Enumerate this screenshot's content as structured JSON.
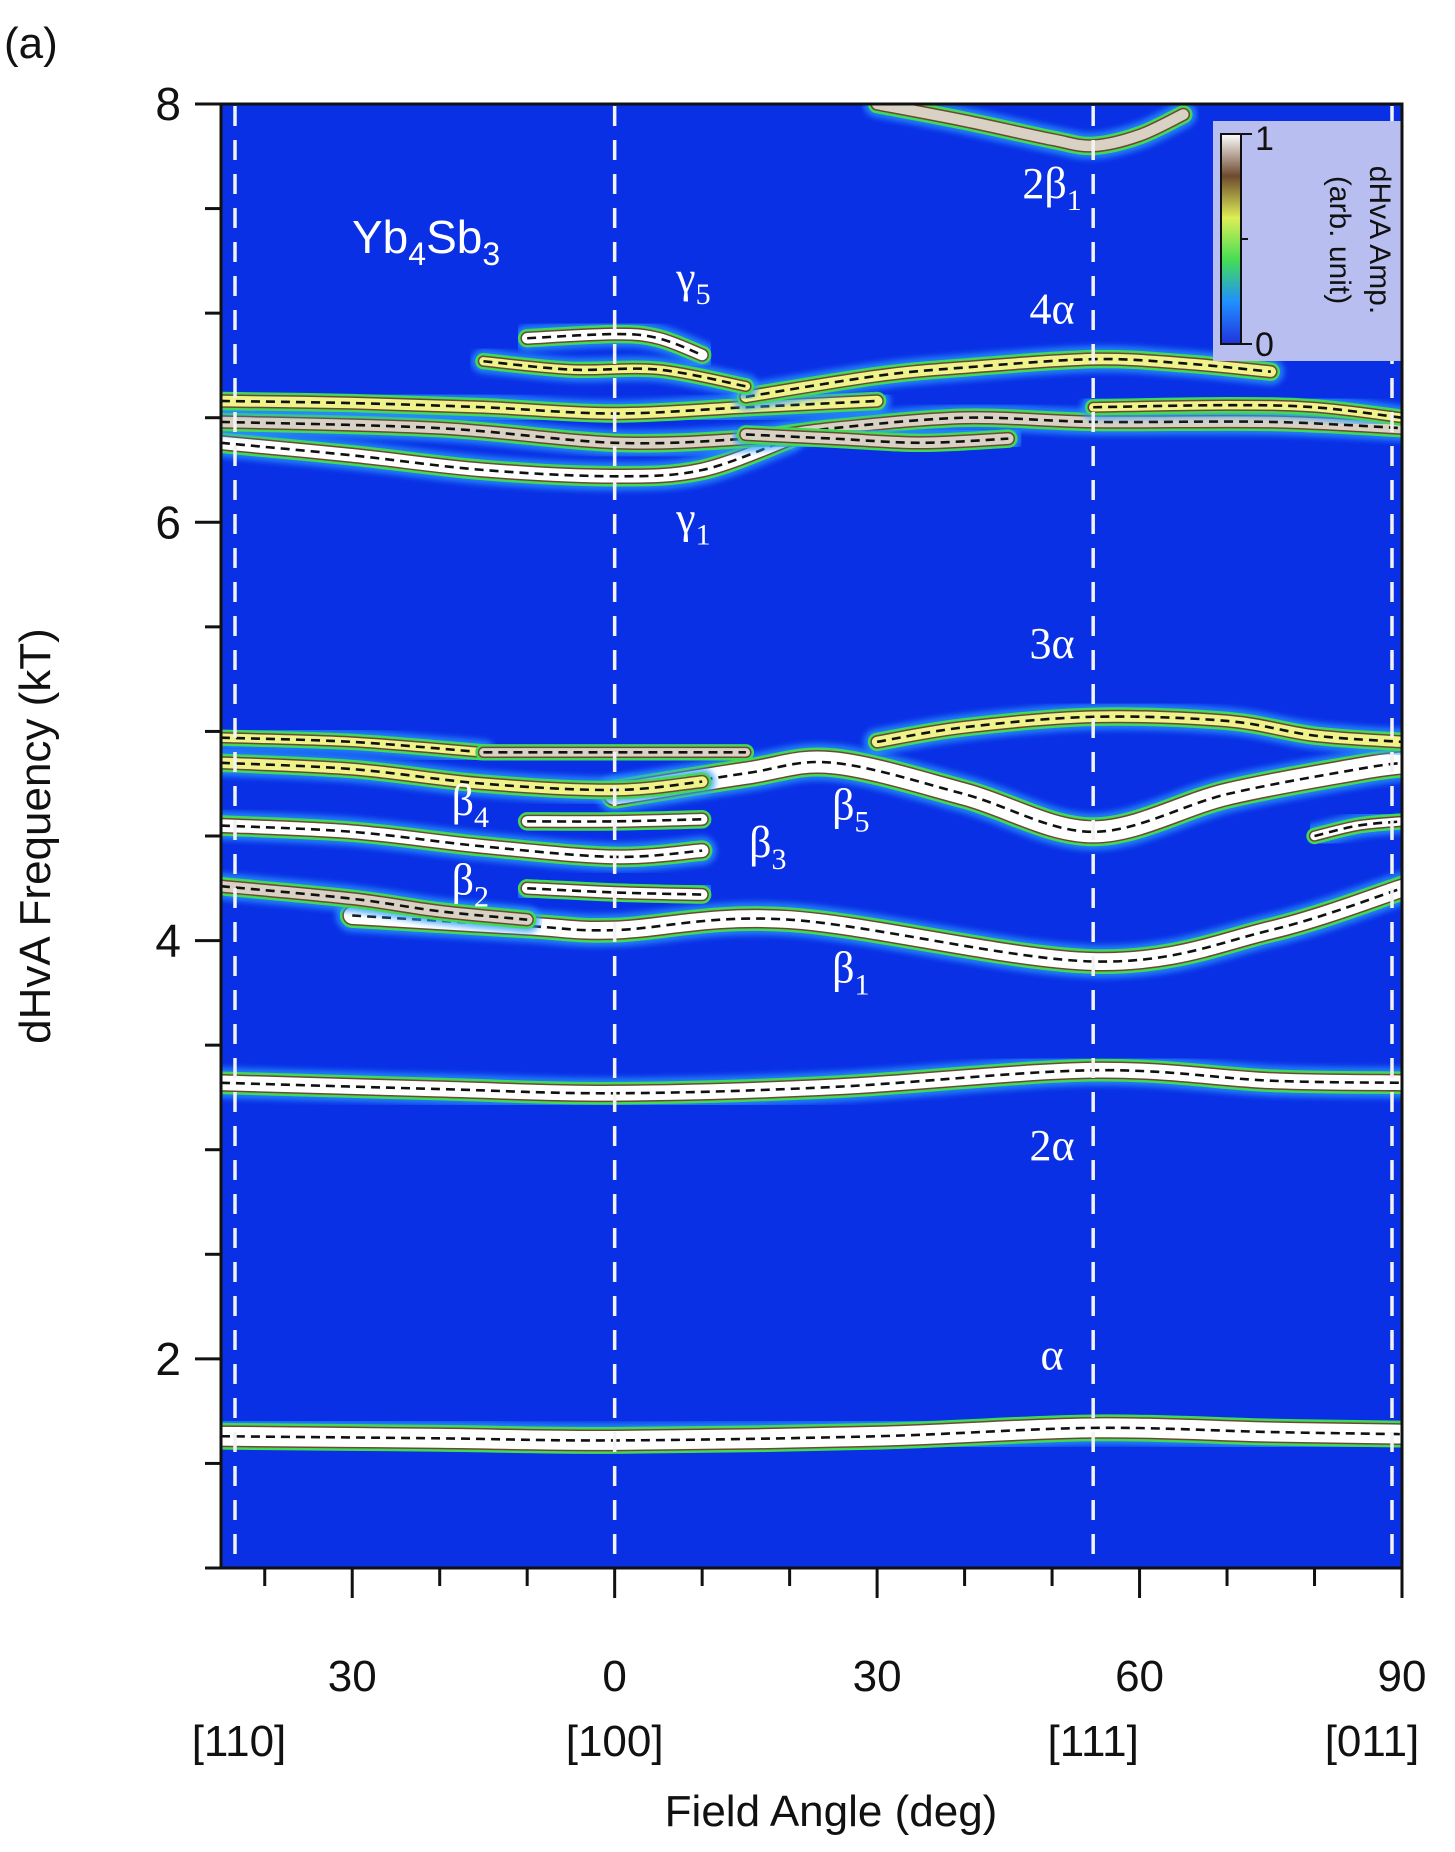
{
  "chart_data": {
    "type": "heatmap",
    "panel_label": "(a)",
    "title": "Yb4Sb3",
    "title_base": "Yb",
    "title_sub1": "4",
    "title_mid": "Sb",
    "title_sub2": "3",
    "xlabel": "Field Angle (deg)",
    "ylabel": "dHvA Frequency (kT)",
    "xlim": [
      -45,
      90
    ],
    "ylim": [
      1.0,
      8.0
    ],
    "x_tick_labels": [
      {
        "x": -30,
        "label": "30"
      },
      {
        "x": 0,
        "label": "0"
      },
      {
        "x": 30,
        "label": "30"
      },
      {
        "x": 60,
        "label": "60"
      },
      {
        "x": 90,
        "label": "90"
      }
    ],
    "x_direction_labels": [
      {
        "x": -45,
        "label": "[110]"
      },
      {
        "x": 0,
        "label": "[100]"
      },
      {
        "x": 54.7,
        "label": "[111]"
      },
      {
        "x": 90,
        "label": "[011]"
      }
    ],
    "y_ticks": [
      2,
      4,
      6,
      8
    ],
    "y_tick_labels": [
      "2",
      "4",
      "6",
      "8"
    ],
    "reference_angles": [
      -45,
      0,
      54.7,
      90
    ],
    "grid": false,
    "colorbar": {
      "label": "dHvA Amp. (arb. unit)",
      "label_line1": "dHvA Amp.",
      "label_line2": "(arb. unit)",
      "min": 0,
      "max": 1,
      "min_label": "0",
      "max_label": "1",
      "position": "top-right",
      "stops": [
        "#2233dd",
        "#1f8fff",
        "#44dd55",
        "#ddee55",
        "#6e4a30",
        "#ffffff"
      ]
    },
    "background_color": "#0a30e6",
    "branch_annotations": [
      {
        "name": "α",
        "base": "α",
        "sub": "",
        "x": 50,
        "y": 1.95
      },
      {
        "name": "2α",
        "base": "2α",
        "sub": "",
        "x": 50,
        "y": 2.95
      },
      {
        "name": "3α",
        "base": "3α",
        "sub": "",
        "x": 50,
        "y": 5.35
      },
      {
        "name": "4α",
        "base": "4α",
        "sub": "",
        "x": 50,
        "y": 6.95
      },
      {
        "name": "2β1",
        "base": "2β",
        "sub": "1",
        "x": 50,
        "y": 7.55
      },
      {
        "name": "β1",
        "base": "β",
        "sub": "1",
        "x": 27,
        "y": 3.8
      },
      {
        "name": "β2",
        "base": "β",
        "sub": "2",
        "x": -16.5,
        "y": 4.22
      },
      {
        "name": "β3",
        "base": "β",
        "sub": "3",
        "x": 17.5,
        "y": 4.4
      },
      {
        "name": "β4",
        "base": "β",
        "sub": "4",
        "x": -16.5,
        "y": 4.6
      },
      {
        "name": "β5",
        "base": "β",
        "sub": "5",
        "x": 27,
        "y": 4.58
      },
      {
        "name": "γ1",
        "base": "γ",
        "sub": "1",
        "x": 9,
        "y": 5.95
      },
      {
        "name": "γ5",
        "base": "γ",
        "sub": "5",
        "x": 9,
        "y": 7.1
      }
    ],
    "branches": [
      {
        "name": "α",
        "amp": 1.0,
        "thickness": 0.09,
        "dashed": true,
        "points": [
          [
            -45,
            1.63
          ],
          [
            -20,
            1.62
          ],
          [
            0,
            1.61
          ],
          [
            30,
            1.63
          ],
          [
            54.7,
            1.67
          ],
          [
            75,
            1.65
          ],
          [
            90,
            1.64
          ]
        ]
      },
      {
        "name": "2α",
        "amp": 1.0,
        "thickness": 0.07,
        "dashed": true,
        "points": [
          [
            -45,
            3.32
          ],
          [
            -20,
            3.29
          ],
          [
            0,
            3.27
          ],
          [
            25,
            3.3
          ],
          [
            54.7,
            3.38
          ],
          [
            75,
            3.33
          ],
          [
            90,
            3.32
          ]
        ]
      },
      {
        "name": "β1",
        "amp": 1.0,
        "thickness": 0.08,
        "dashed": true,
        "points": [
          [
            -30,
            4.12
          ],
          [
            -10,
            4.07
          ],
          [
            0,
            4.05
          ],
          [
            20,
            4.1
          ],
          [
            54.7,
            3.9
          ],
          [
            75,
            4.05
          ],
          [
            90,
            4.25
          ]
        ]
      },
      {
        "name": "β5",
        "amp": 1.0,
        "thickness": 0.1,
        "dashed": true,
        "points": [
          [
            0,
            4.7
          ],
          [
            15,
            4.8
          ],
          [
            25,
            4.85
          ],
          [
            40,
            4.7
          ],
          [
            54.7,
            4.52
          ],
          [
            70,
            4.7
          ],
          [
            85,
            4.82
          ],
          [
            90,
            4.85
          ]
        ]
      },
      {
        "name": "3α",
        "amp": 0.6,
        "thickness": 0.05,
        "dashed": true,
        "points": [
          [
            30,
            4.95
          ],
          [
            40,
            5.02
          ],
          [
            54.7,
            5.07
          ],
          [
            70,
            5.05
          ],
          [
            80,
            4.98
          ],
          [
            90,
            4.95
          ]
        ]
      },
      {
        "name": "β4",
        "amp": 1.0,
        "thickness": 0.06,
        "dashed": true,
        "points": [
          [
            -45,
            4.55
          ],
          [
            -30,
            4.52
          ],
          [
            -15,
            4.45
          ],
          [
            0,
            4.4
          ],
          [
            10,
            4.43
          ]
        ]
      },
      {
        "name": "β4-upper",
        "amp": 1.0,
        "thickness": 0.05,
        "dashed": true,
        "points": [
          [
            -10,
            4.57
          ],
          [
            0,
            4.57
          ],
          [
            10,
            4.58
          ]
        ]
      },
      {
        "name": "β2",
        "amp": 1.0,
        "thickness": 0.05,
        "dashed": true,
        "points": [
          [
            -10,
            4.25
          ],
          [
            0,
            4.23
          ],
          [
            10,
            4.22
          ]
        ]
      },
      {
        "name": "β-left",
        "amp": 0.8,
        "thickness": 0.05,
        "dashed": true,
        "points": [
          [
            -45,
            4.26
          ],
          [
            -30,
            4.2
          ],
          [
            -20,
            4.14
          ],
          [
            -10,
            4.1
          ]
        ]
      },
      {
        "name": "β-upper-left",
        "amp": 0.7,
        "thickness": 0.05,
        "dashed": true,
        "points": [
          [
            -45,
            4.85
          ],
          [
            -30,
            4.82
          ],
          [
            -15,
            4.75
          ],
          [
            0,
            4.72
          ],
          [
            10,
            4.76
          ]
        ]
      },
      {
        "name": "β-top-left",
        "amp": 0.6,
        "thickness": 0.04,
        "dashed": true,
        "points": [
          [
            -45,
            4.97
          ],
          [
            -30,
            4.95
          ],
          [
            -15,
            4.9
          ]
        ]
      },
      {
        "name": "β-top-mid",
        "amp": 0.8,
        "thickness": 0.04,
        "dashed": true,
        "points": [
          [
            -15,
            4.9
          ],
          [
            0,
            4.9
          ],
          [
            15,
            4.9
          ]
        ]
      },
      {
        "name": "β-right",
        "amp": 1.0,
        "thickness": 0.04,
        "dashed": true,
        "points": [
          [
            80,
            4.5
          ],
          [
            85,
            4.55
          ],
          [
            90,
            4.57
          ]
        ]
      },
      {
        "name": "γ1",
        "amp": 1.0,
        "thickness": 0.06,
        "dashed": true,
        "points": [
          [
            -45,
            6.38
          ],
          [
            -30,
            6.32
          ],
          [
            -15,
            6.25
          ],
          [
            0,
            6.22
          ],
          [
            10,
            6.25
          ],
          [
            20,
            6.4
          ]
        ]
      },
      {
        "name": "γ-a",
        "amp": 0.9,
        "thickness": 0.05,
        "dashed": true,
        "points": [
          [
            -45,
            6.48
          ],
          [
            -20,
            6.45
          ],
          [
            0,
            6.38
          ],
          [
            15,
            6.4
          ],
          [
            25,
            6.45
          ],
          [
            40,
            6.5
          ],
          [
            54.7,
            6.48
          ],
          [
            75,
            6.48
          ],
          [
            90,
            6.45
          ]
        ]
      },
      {
        "name": "γ-b",
        "amp": 0.7,
        "thickness": 0.05,
        "dashed": true,
        "points": [
          [
            -45,
            6.58
          ],
          [
            -30,
            6.57
          ],
          [
            -15,
            6.55
          ],
          [
            0,
            6.52
          ],
          [
            15,
            6.55
          ],
          [
            30,
            6.58
          ]
        ]
      },
      {
        "name": "γ-c",
        "amp": 0.8,
        "thickness": 0.05,
        "dashed": true,
        "points": [
          [
            15,
            6.42
          ],
          [
            25,
            6.4
          ],
          [
            35,
            6.38
          ],
          [
            45,
            6.4
          ]
        ]
      },
      {
        "name": "γ-right",
        "amp": 0.6,
        "thickness": 0.04,
        "dashed": true,
        "points": [
          [
            54.7,
            6.55
          ],
          [
            70,
            6.56
          ],
          [
            80,
            6.55
          ],
          [
            90,
            6.5
          ]
        ]
      },
      {
        "name": "4α",
        "amp": 0.7,
        "thickness": 0.05,
        "dashed": true,
        "points": [
          [
            15,
            6.6
          ],
          [
            30,
            6.7
          ],
          [
            40,
            6.74
          ],
          [
            54.7,
            6.78
          ],
          [
            65,
            6.76
          ],
          [
            75,
            6.72
          ]
        ]
      },
      {
        "name": "γ5",
        "amp": 1.0,
        "thickness": 0.05,
        "dashed": true,
        "points": [
          [
            -10,
            6.88
          ],
          [
            0,
            6.9
          ],
          [
            5,
            6.88
          ],
          [
            10,
            6.8
          ]
        ]
      },
      {
        "name": "γ-d",
        "amp": 0.6,
        "thickness": 0.04,
        "dashed": true,
        "points": [
          [
            -15,
            6.77
          ],
          [
            -5,
            6.73
          ],
          [
            5,
            6.73
          ],
          [
            15,
            6.65
          ]
        ]
      },
      {
        "name": "2β1",
        "amp": 0.8,
        "thickness": 0.05,
        "dashed": false,
        "points": [
          [
            30,
            8.0
          ],
          [
            40,
            7.92
          ],
          [
            50,
            7.83
          ],
          [
            54.7,
            7.8
          ],
          [
            60,
            7.85
          ],
          [
            65,
            7.95
          ]
        ]
      }
    ]
  }
}
